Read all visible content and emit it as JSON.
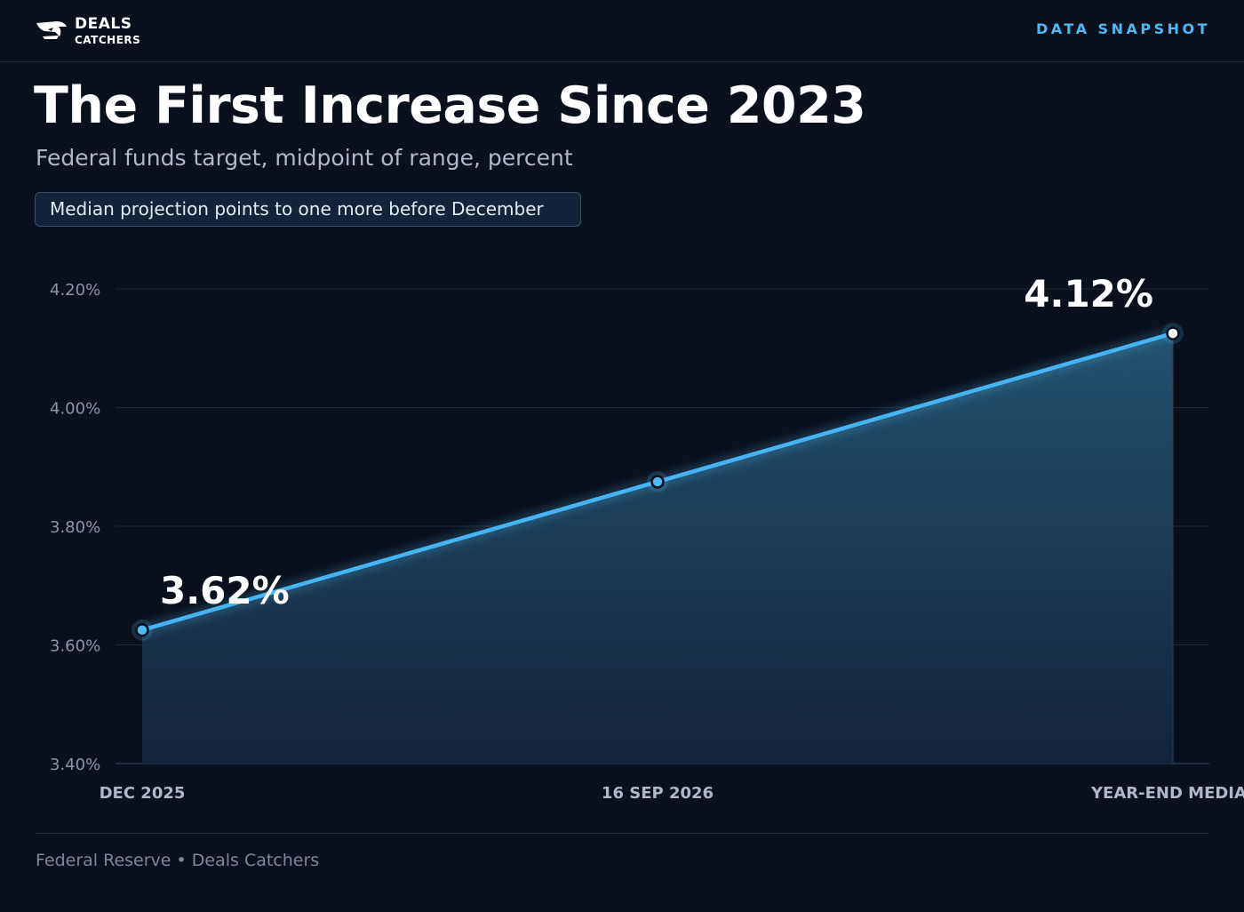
{
  "header": {
    "logo_line1": "DEALS",
    "logo_line2": "CATCHERS",
    "logo_icon": "shark-fin-logo",
    "tag": "DATA SNAPSHOT"
  },
  "colors": {
    "background": "#0a101c",
    "accent": "#4fb8f5",
    "line": "#46b4f2",
    "area_top": "#245573",
    "area_bottom": "#13253d",
    "grid": "#1c2738"
  },
  "footer": {
    "source": "Federal Reserve • Deals Catchers"
  },
  "chart_data": {
    "type": "area",
    "title": "The First Increase Since 2023",
    "subtitle": "Federal funds target, midpoint of range, percent",
    "annotation": "Median projection points to one more before December",
    "categories": [
      "DEC 2025",
      "16 SEP 2026",
      "YEAR-END MEDIAN"
    ],
    "values": [
      3.625,
      3.875,
      4.125
    ],
    "data_labels": [
      "3.62%",
      "",
      "4.12%"
    ],
    "ylim": [
      3.4,
      4.2
    ],
    "yticks": [
      3.4,
      3.6,
      3.8,
      4.0,
      4.2
    ],
    "ytick_labels": [
      "3.40%",
      "3.60%",
      "3.80%",
      "4.00%",
      "4.20%"
    ],
    "xlabel": "",
    "ylabel": "",
    "grid": true,
    "legend": "none"
  }
}
